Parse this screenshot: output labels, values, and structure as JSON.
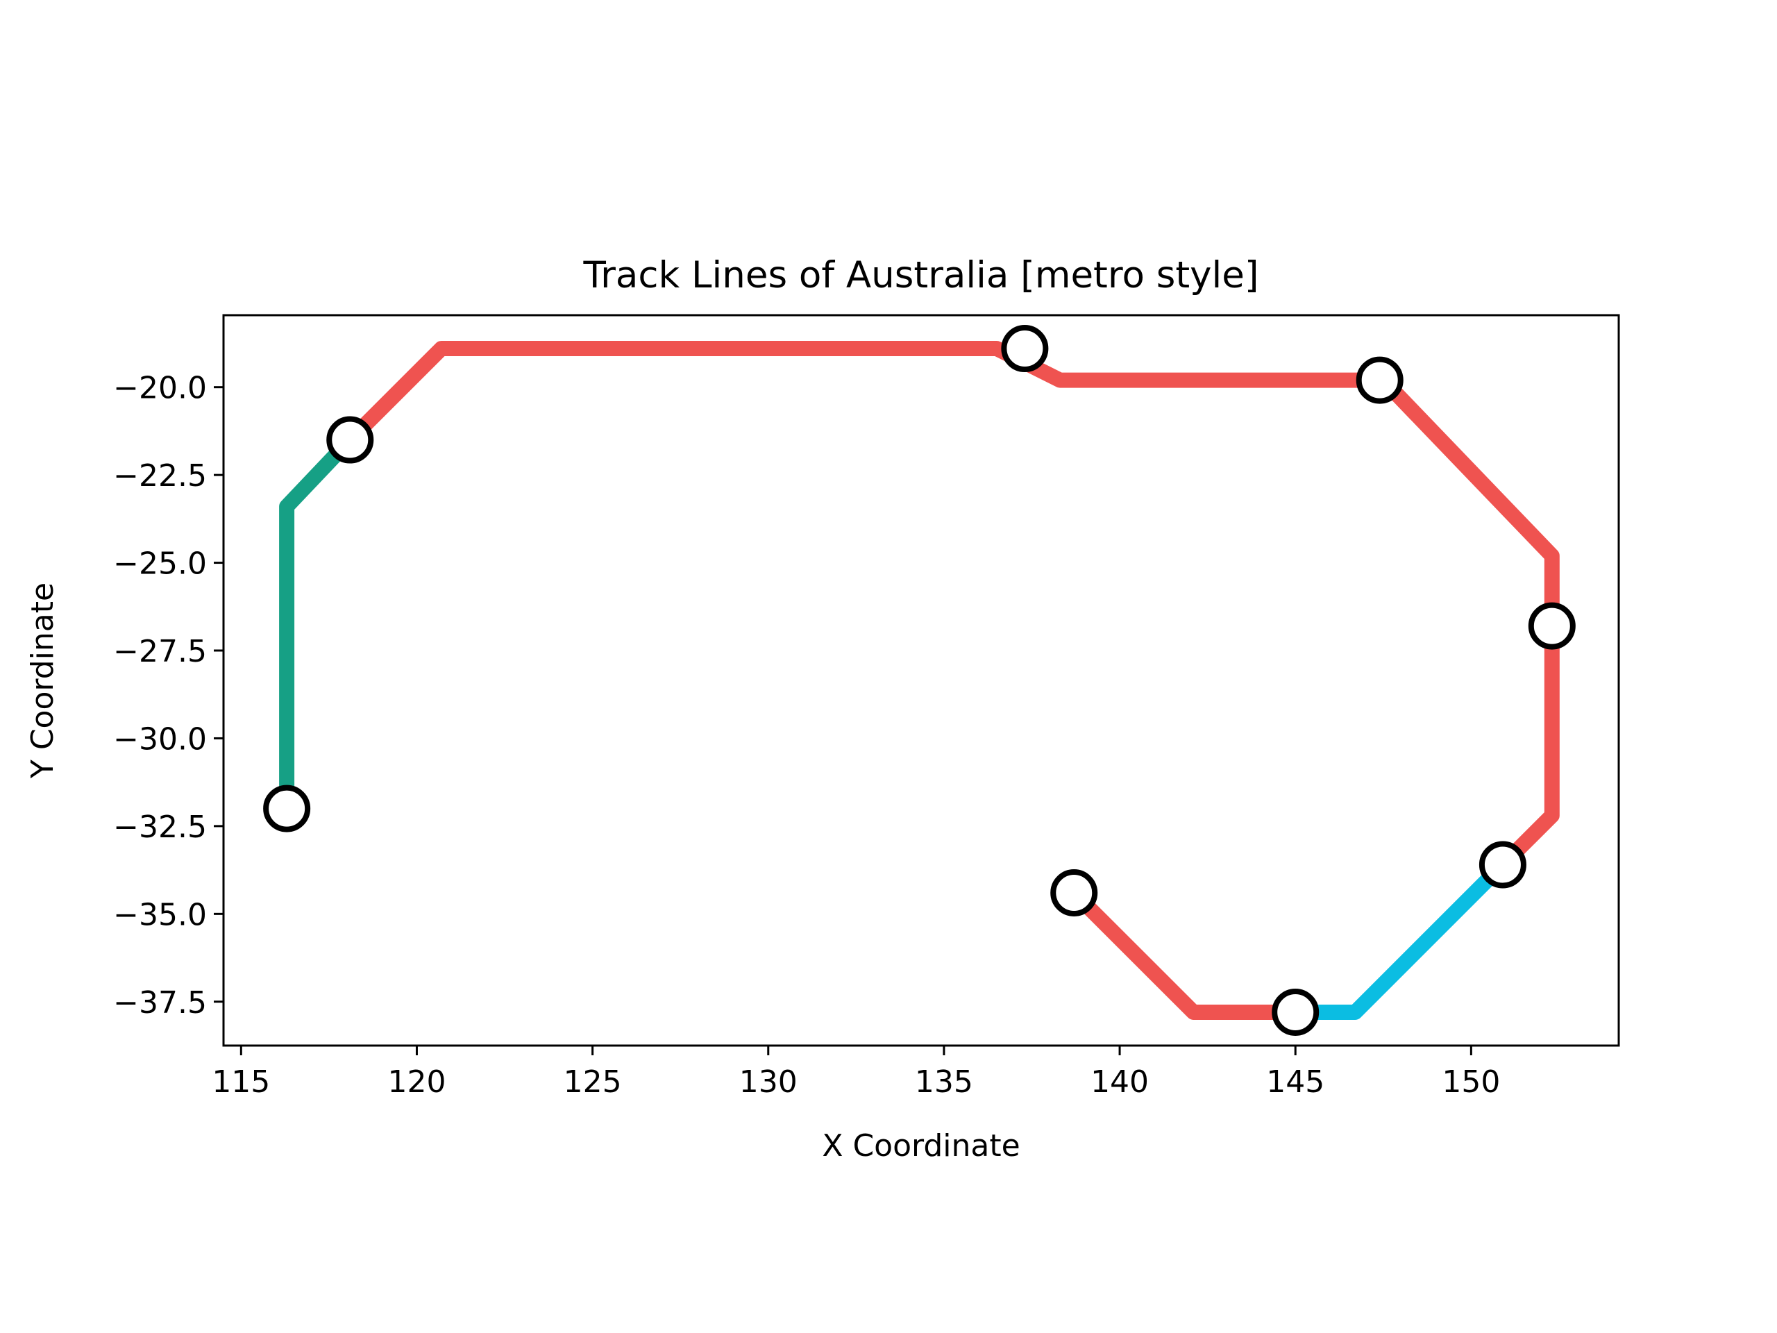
{
  "chart_data": {
    "type": "line",
    "title": "Track Lines of Australia [metro style]",
    "xlabel": "X Coordinate",
    "ylabel": "Y Coordinate",
    "xlim": [
      114.5,
      154.2
    ],
    "ylim": [
      -38.75,
      -17.95
    ],
    "xticks": [
      {
        "value": 115,
        "label": "115"
      },
      {
        "value": 120,
        "label": "120"
      },
      {
        "value": 125,
        "label": "125"
      },
      {
        "value": 130,
        "label": "130"
      },
      {
        "value": 135,
        "label": "135"
      },
      {
        "value": 140,
        "label": "140"
      },
      {
        "value": 145,
        "label": "145"
      },
      {
        "value": 150,
        "label": "150"
      }
    ],
    "yticks": [
      {
        "value": -20.0,
        "label": "−20.0"
      },
      {
        "value": -22.5,
        "label": "−22.5"
      },
      {
        "value": -25.0,
        "label": "−25.0"
      },
      {
        "value": -27.5,
        "label": "−27.5"
      },
      {
        "value": -30.0,
        "label": "−30.0"
      },
      {
        "value": -32.5,
        "label": "−32.5"
      },
      {
        "value": -35.0,
        "label": "−35.0"
      },
      {
        "value": -37.5,
        "label": "−37.5"
      }
    ],
    "grid": false,
    "legend": "none",
    "series": [
      {
        "color": "#ef5350",
        "x": [
          118.1,
          120.7,
          136.5,
          138.3,
          147.5,
          152.3,
          152.3,
          150.9
        ],
        "y": [
          -21.5,
          -18.9,
          -18.9,
          -19.8,
          -19.8,
          -24.8,
          -32.2,
          -33.6
        ]
      },
      {
        "color": "#ef5350",
        "x": [
          138.7,
          142.1,
          145.0
        ],
        "y": [
          -34.4,
          -37.8,
          -37.8
        ]
      },
      {
        "color": "#16a085",
        "x": [
          116.3,
          116.3,
          118.1
        ],
        "y": [
          -32.0,
          -23.4,
          -21.5
        ]
      },
      {
        "color": "#0bbde2",
        "x": [
          145.0,
          146.7,
          150.9
        ],
        "y": [
          -37.8,
          -37.8,
          -33.6
        ]
      }
    ],
    "stations": {
      "x": [
        116.3,
        118.1,
        137.3,
        147.4,
        152.3,
        150.9,
        145.0,
        138.7
      ],
      "y": [
        -32.0,
        -21.5,
        -18.9,
        -19.8,
        -26.8,
        -33.6,
        -37.8,
        -34.4
      ]
    },
    "colors": {
      "station_fill": "#ffffff",
      "station_stroke": "#000000",
      "frame": "#000000"
    }
  }
}
